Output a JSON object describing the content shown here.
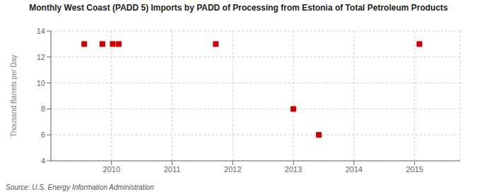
{
  "chart_data": {
    "type": "scatter",
    "title": "Monthly West Coast (PADD 5) Imports by PADD of Processing from Estonia of Total Petroleum Products",
    "ylabel": "Thousand Barrels per Day",
    "source": "Source: U.S. Energy Information Administration",
    "x": [
      2009.55,
      2009.85,
      2010.02,
      2010.12,
      2011.72,
      2013.0,
      2013.42,
      2015.08
    ],
    "values": [
      13,
      13,
      13,
      13,
      13,
      8,
      6,
      13
    ],
    "color": "#cc0000",
    "marker": "square",
    "xlim": [
      2009.0,
      2015.75
    ],
    "xticks": [
      2010,
      2011,
      2012,
      2013,
      2014,
      2015
    ],
    "ylim": [
      4,
      14
    ],
    "yticks": [
      4,
      6,
      8,
      10,
      12,
      14
    ],
    "grid": true
  }
}
